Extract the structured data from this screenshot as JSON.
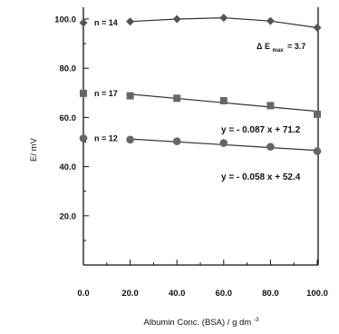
{
  "chart_data": {
    "type": "scatter",
    "xlabel": "Albumin Conc. (BSA) / g dm",
    "xlabel_superscript": "-3",
    "ylabel": "E/ mV",
    "xlim": [
      0,
      100
    ],
    "ylim": [
      0,
      100
    ],
    "x_ticks": [
      "0.0",
      "20.0",
      "40.0",
      "60.0",
      "80.0",
      "100.0"
    ],
    "y_ticks": [
      "20.0",
      "40.0",
      "60.0",
      "80.0",
      "100.0"
    ],
    "grid": false,
    "series": [
      {
        "marker": "diamond",
        "x": [
          0,
          20,
          40,
          60,
          80,
          100
        ],
        "y": [
          98.5,
          99.0,
          100.0,
          100.5,
          99.2,
          96.5
        ],
        "fit": "connected",
        "annotation": "n = 14"
      },
      {
        "marker": "square",
        "x": [
          0,
          20,
          40,
          60,
          80,
          100
        ],
        "y": [
          69.8,
          68.8,
          67.8,
          66.8,
          64.8,
          61.3
        ],
        "fit": {
          "slope": -0.087,
          "intercept": 71.2
        },
        "annotation": "n = 17",
        "equation": "y = - 0.087 x + 71.2"
      },
      {
        "marker": "circle",
        "x": [
          0,
          20,
          40,
          60,
          80,
          100
        ],
        "y": [
          51.5,
          51.0,
          50.3,
          49.6,
          48.1,
          46.3
        ],
        "fit": {
          "slope": -0.058,
          "intercept": 52.4
        },
        "annotation": "n = 12",
        "equation": "y = - 0.058 x + 52.4"
      }
    ],
    "extra_annotation": {
      "text": "Δ E",
      "subscript": "max",
      "value": "= 3.7"
    }
  }
}
